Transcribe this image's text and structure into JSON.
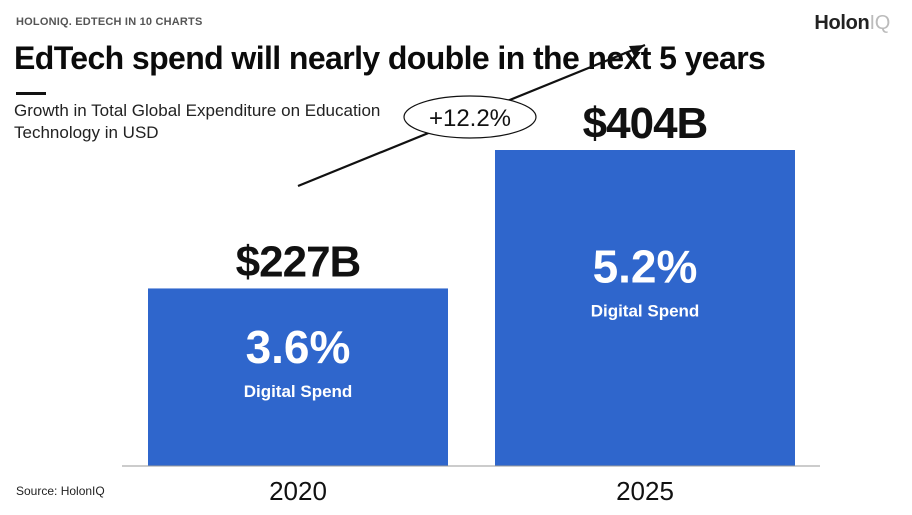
{
  "header": {
    "kicker_brand": "HOLONIQ.",
    "kicker_text": " EDTECH IN 10 CHARTS",
    "logo_main": "Holon",
    "logo_accent": "IQ"
  },
  "title": "EdTech spend will nearly double in the next 5 years",
  "subtitle": "Growth in Total Global Expenditure on Education Technology in USD",
  "source": "Source: HolonIQ",
  "colors": {
    "bar": "#2f66cc",
    "text": "#111111",
    "baseline": "#9a9a9a"
  },
  "chart_data": {
    "type": "bar",
    "title": "EdTech spend will nearly double in the next 5 years",
    "subtitle": "Growth in Total Global Expenditure on Education Technology in USD",
    "categories": [
      "2020",
      "2025"
    ],
    "values": [
      227,
      404
    ],
    "value_labels": [
      "$227B",
      "$404B"
    ],
    "inner_labels": [
      {
        "big": "3.6%",
        "small": "Digital Spend"
      },
      {
        "big": "5.2%",
        "small": "Digital Spend"
      }
    ],
    "growth_annotation": "+12.2%",
    "ylim": [
      0,
      404
    ],
    "grid": false,
    "xlabel": "",
    "ylabel": ""
  }
}
